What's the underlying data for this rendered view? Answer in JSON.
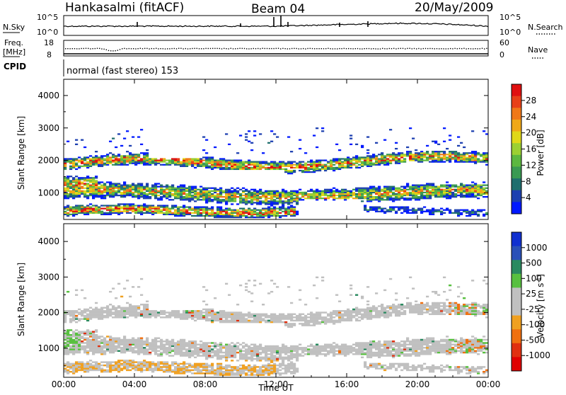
{
  "header": {
    "station": "Hankasalmi (fitACF)",
    "beam": "Beam 04",
    "date": "20/May/2009"
  },
  "top_panels": {
    "nsky_label": "N.Sky",
    "nsky_ticks": [
      "10^5",
      "10^0"
    ],
    "nsearch_label": "N.Search",
    "nsearch_ticks": [
      "10^5",
      "10^0"
    ],
    "freq_label_line1": "Freq.",
    "freq_label_line2": "[MHz]",
    "freq_ticks": [
      "18",
      "8"
    ],
    "nave_label": "Nave",
    "nave_ticks": [
      "60",
      "0"
    ],
    "cpid_label": "CPID",
    "cpid_text": "normal (fast stereo) 153"
  },
  "chart_data": [
    {
      "type": "heatmap",
      "panel": "power",
      "ylabel": "Slant Range [km]",
      "xlabel": "",
      "xlim": [
        "00:00",
        "00:00"
      ],
      "ylim": [
        180,
        4500
      ],
      "yticks": [
        1000,
        2000,
        3000,
        4000
      ],
      "colorbar": {
        "label": "Power [dB]",
        "ticks": [
          "28",
          "24",
          "20",
          "16",
          "12",
          "8",
          "4"
        ],
        "range": [
          0,
          30
        ],
        "colors": [
          "#0018ff",
          "#1c3fb0",
          "#1f6e6e",
          "#3a9a52",
          "#5cb840",
          "#9cd032",
          "#e0d818",
          "#f0a818",
          "#f07818",
          "#e84018",
          "#e01010"
        ]
      },
      "bands": [
        {
          "range_km": [
            1700,
            2100
          ],
          "level": "medium-high"
        },
        {
          "range_km": [
            600,
            1400
          ],
          "level": "medium"
        },
        {
          "range_km": [
            250,
            700
          ],
          "level": "high"
        }
      ]
    },
    {
      "type": "heatmap",
      "panel": "velocity",
      "ylabel": "Slant Range [km]",
      "xlabel": "Time UT",
      "xticks": [
        "00:00",
        "04:00",
        "08:00",
        "12:00",
        "16:00",
        "20:00",
        "00:00"
      ],
      "ylim": [
        180,
        4500
      ],
      "yticks": [
        1000,
        2000,
        3000,
        4000
      ],
      "colorbar": {
        "label": "Velocity [m s",
        "label_sup": "-1",
        "label_end": "]",
        "ticks": [
          "1000",
          "500",
          "100",
          "25",
          "-25",
          "-100",
          "-500",
          "-1000"
        ],
        "colors": [
          "#1030d0",
          "#2a50b8",
          "#2a8a60",
          "#58c040",
          "#c0c0c0",
          "#c0c0c0",
          "#f0a020",
          "#f07010",
          "#e03010",
          "#e00000"
        ]
      }
    }
  ]
}
